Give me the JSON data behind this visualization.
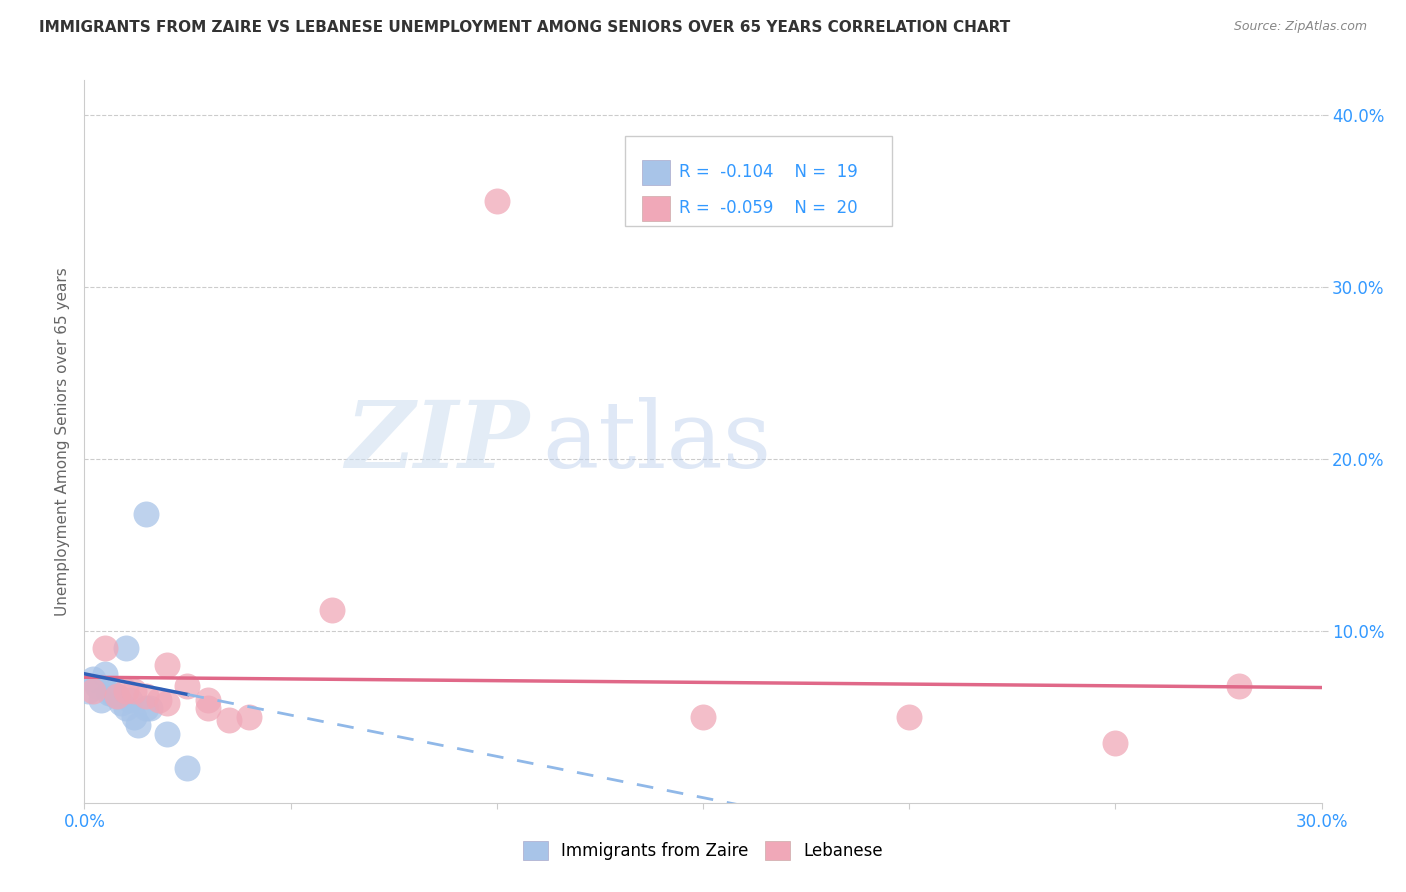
{
  "title": "IMMIGRANTS FROM ZAIRE VS LEBANESE UNEMPLOYMENT AMONG SENIORS OVER 65 YEARS CORRELATION CHART",
  "source": "Source: ZipAtlas.com",
  "ylabel": "Unemployment Among Seniors over 65 years",
  "xlim": [
    0.0,
    0.3
  ],
  "ylim": [
    0.0,
    0.42
  ],
  "yticks": [
    0.1,
    0.2,
    0.3,
    0.4
  ],
  "ytick_labels": [
    "10.0%",
    "20.0%",
    "30.0%",
    "40.0%"
  ],
  "xticks": [
    0.0,
    0.05,
    0.1,
    0.15,
    0.2,
    0.25,
    0.3
  ],
  "xtick_labels": [
    "0.0%",
    "",
    "",
    "",
    "",
    "",
    "30.0%"
  ],
  "color_blue": "#a8c4e8",
  "color_pink": "#f0a8b8",
  "color_trend_blue_solid": "#3060b8",
  "color_trend_blue_dash": "#90b8e8",
  "color_trend_pink_solid": "#e06888",
  "legend_label_1": "Immigrants from Zaire",
  "legend_label_2": "Lebanese",
  "legend_r1": "-0.104",
  "legend_n1": "19",
  "legend_r2": "-0.059",
  "legend_n2": "20",
  "blue_x": [
    0.001,
    0.002,
    0.003,
    0.004,
    0.005,
    0.006,
    0.007,
    0.008,
    0.009,
    0.01,
    0.011,
    0.012,
    0.013,
    0.015,
    0.016,
    0.02,
    0.025,
    0.015,
    0.01
  ],
  "blue_y": [
    0.065,
    0.072,
    0.068,
    0.06,
    0.075,
    0.064,
    0.063,
    0.062,
    0.058,
    0.055,
    0.06,
    0.05,
    0.045,
    0.168,
    0.055,
    0.04,
    0.02,
    0.055,
    0.09
  ],
  "pink_x": [
    0.002,
    0.005,
    0.008,
    0.01,
    0.012,
    0.015,
    0.018,
    0.02,
    0.025,
    0.03,
    0.035,
    0.04,
    0.06,
    0.1,
    0.15,
    0.2,
    0.25,
    0.28,
    0.03,
    0.02
  ],
  "pink_y": [
    0.065,
    0.09,
    0.062,
    0.065,
    0.065,
    0.062,
    0.06,
    0.058,
    0.068,
    0.055,
    0.048,
    0.05,
    0.112,
    0.35,
    0.05,
    0.05,
    0.035,
    0.068,
    0.06,
    0.08
  ]
}
